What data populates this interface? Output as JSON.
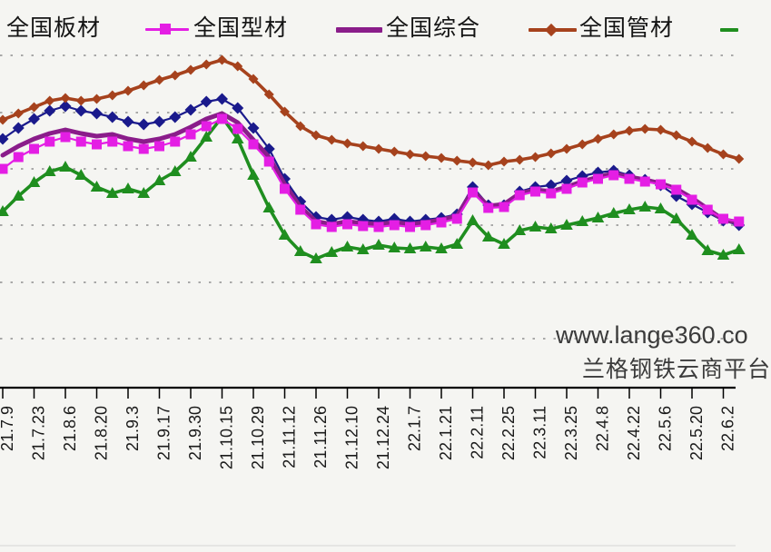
{
  "legend": {
    "items": [
      {
        "label": "全国板材",
        "color": "#1a1a8c",
        "marker": "diamond",
        "marker_visible": false
      },
      {
        "label": "全国型材",
        "color": "#e41ee4",
        "marker": "square",
        "marker_visible": true
      },
      {
        "label": "全国综合",
        "color": "#8a1d8a",
        "marker": "line",
        "marker_visible": true
      },
      {
        "label": "全国管材",
        "color": "#a6421d",
        "marker": "diamond",
        "marker_visible": true
      },
      {
        "label": "",
        "color": "#1f8e1f",
        "marker": "line",
        "marker_visible": true,
        "label_visible": false
      }
    ]
  },
  "watermark": {
    "line1": "www.lange360.co",
    "line2": "兰格钢铁云商平台"
  },
  "chart_data": {
    "type": "line",
    "title": "",
    "xlabel": "",
    "ylabel": "",
    "y_axis_labels_visible": false,
    "y_scale_note": "relative index scale (y-axis cropped out of screenshot)",
    "ylim": [
      0,
      380
    ],
    "grid": "horizontal-dotted",
    "legend_position": "top",
    "x_tick_labels": [
      "21.7.9",
      "21.7.23",
      "21.8.6",
      "21.8.20",
      "21.9.3",
      "21.9.17",
      "21.9.30",
      "21.10.15",
      "21.10.29",
      "21.11.12",
      "21.11.26",
      "21.12.10",
      "21.12.24",
      "22.1.7",
      "22.1.21",
      "22.2.11",
      "22.2.25",
      "22.3.11",
      "22.3.25",
      "22.4.8",
      "22.4.22",
      "22.5.6",
      "22.5.20",
      "22.6.2"
    ],
    "points_per_tick": 2,
    "series": [
      {
        "name": "全国板材",
        "color": "#1a1a8c",
        "marker": "diamond",
        "line_width": 2.2,
        "values": [
          274,
          286,
          296,
          305,
          310,
          305,
          302,
          298,
          293,
          290,
          293,
          298,
          306,
          315,
          318,
          308,
          286,
          263,
          230,
          205,
          188,
          185,
          188,
          185,
          183,
          186,
          183,
          185,
          187,
          191,
          221,
          201,
          201,
          216,
          221,
          223,
          228,
          233,
          237,
          239,
          234,
          229,
          223,
          211,
          202,
          193,
          184,
          179
        ]
      },
      {
        "name": "全国型材",
        "color": "#e41ee4",
        "marker": "square",
        "line_width": 2.2,
        "values": [
          241,
          254,
          263,
          271,
          276,
          271,
          268,
          271,
          266,
          263,
          266,
          271,
          279,
          288,
          296,
          285,
          268,
          249,
          219,
          196,
          180,
          177,
          180,
          178,
          177,
          179,
          177,
          179,
          182,
          186,
          215,
          198,
          199,
          212,
          216,
          214,
          219,
          226,
          230,
          234,
          230,
          227,
          224,
          218,
          207,
          196,
          186,
          183
        ]
      },
      {
        "name": "全国综合",
        "color": "#8a1d8a",
        "marker": "none",
        "line_width": 5,
        "values": [
          256,
          266,
          274,
          280,
          284,
          280,
          277,
          279,
          274,
          271,
          274,
          279,
          287,
          296,
          302,
          292,
          273,
          254,
          224,
          199,
          183,
          180,
          183,
          181,
          180,
          182,
          180,
          182,
          185,
          189,
          217,
          200,
          202,
          214,
          218,
          216,
          221,
          227,
          232,
          236,
          232,
          229,
          225,
          219,
          209,
          197,
          185,
          182
        ]
      },
      {
        "name": "全国管材",
        "color": "#a6421d",
        "marker": "diamond-small",
        "line_width": 3.6,
        "values": [
          295,
          302,
          309,
          316,
          319,
          316,
          318,
          322,
          327,
          333,
          339,
          344,
          350,
          356,
          361,
          354,
          340,
          323,
          304,
          288,
          278,
          273,
          269,
          266,
          263,
          260,
          257,
          255,
          253,
          250,
          248,
          245,
          249,
          251,
          254,
          258,
          263,
          268,
          274,
          279,
          283,
          285,
          284,
          278,
          271,
          264,
          257,
          252
        ]
      },
      {
        "name": "",
        "label_visible": false,
        "color": "#1f8e1f",
        "marker": "triangle",
        "line_width": 3.6,
        "values": [
          194,
          211,
          226,
          238,
          243,
          234,
          221,
          214,
          219,
          214,
          228,
          238,
          254,
          276,
          298,
          274,
          234,
          198,
          168,
          150,
          142,
          149,
          155,
          152,
          157,
          154,
          153,
          155,
          153,
          158,
          184,
          166,
          158,
          173,
          177,
          175,
          179,
          183,
          187,
          192,
          196,
          199,
          197,
          186,
          168,
          151,
          146,
          152
        ]
      }
    ]
  }
}
